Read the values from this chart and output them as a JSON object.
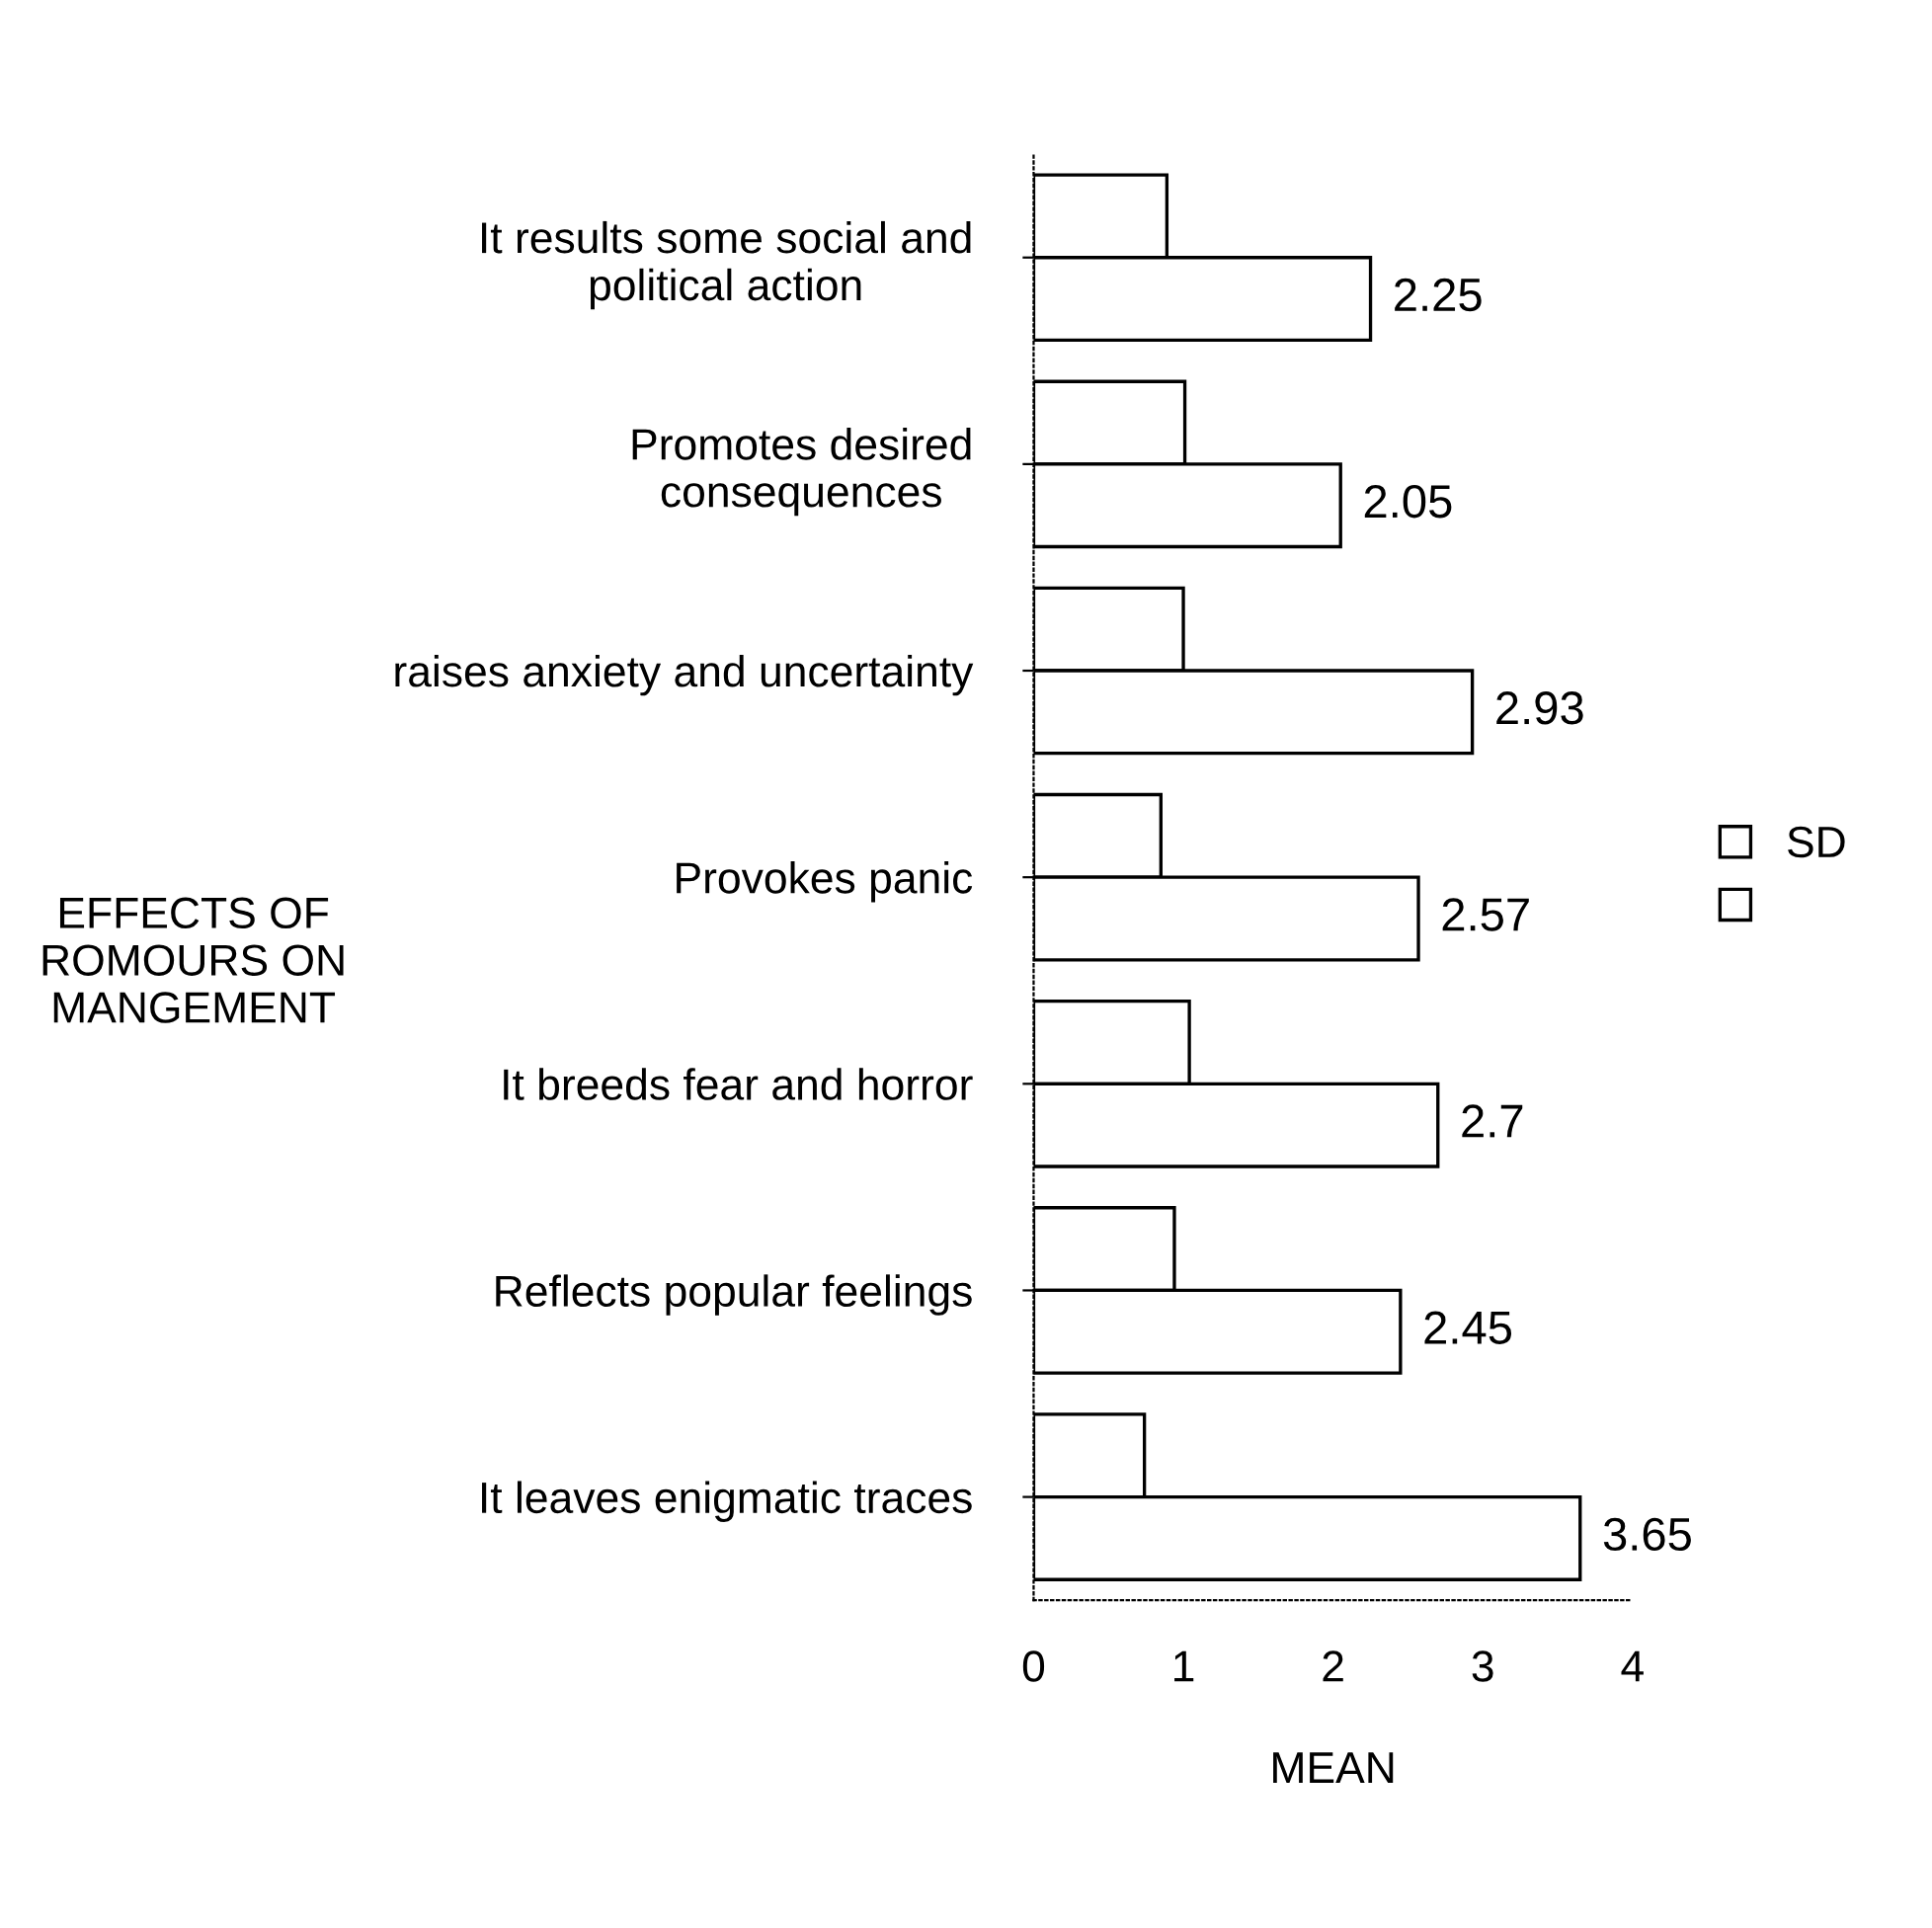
{
  "chart_data": {
    "type": "bar",
    "orientation": "horizontal",
    "categories": [
      "It results some social and\npolitical action",
      "Promotes desired\nconsequences",
      "raises anxiety and uncertainty",
      "Provokes panic",
      "It breeds fear and horror",
      "Reflects popular feelings",
      "It leaves enigmatic traces"
    ],
    "series": [
      {
        "name": "SD",
        "color": "#ffffff",
        "values": [
          0.89,
          1.01,
          1.0,
          0.85,
          1.04,
          0.94,
          0.74
        ]
      },
      {
        "color": "#ffffff",
        "values": [
          2.25,
          2.05,
          2.93,
          2.57,
          2.7,
          2.45,
          3.65
        ],
        "value_labels": [
          "2.25",
          "2.05",
          "2.93",
          "2.57",
          "2.7",
          "2.45",
          "3.65"
        ]
      }
    ],
    "xlabel": "MEAN",
    "ylabel": "EFFECTS OF\nROMOURS ON\nMANGEMENT",
    "xlim": [
      0,
      4
    ],
    "xticks": [
      0,
      1,
      2,
      3,
      4
    ],
    "grid": false,
    "legend": "right"
  }
}
